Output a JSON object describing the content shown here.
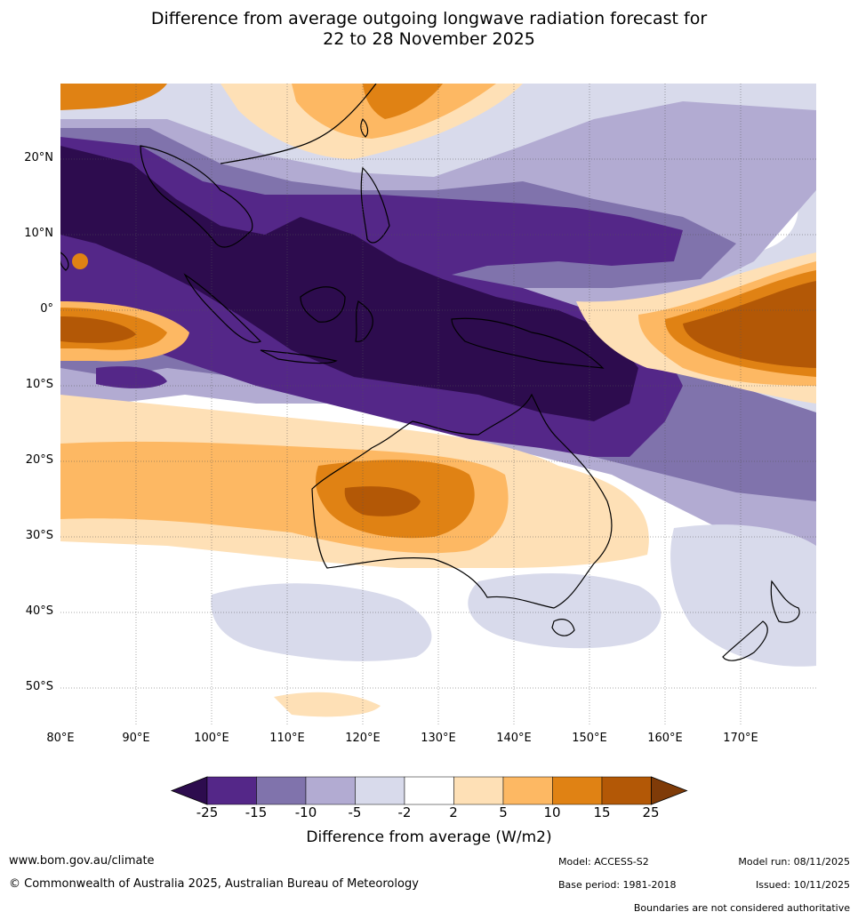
{
  "title": {
    "line1": "Difference from average outgoing longwave radiation forecast for",
    "line2": "22 to 28 November 2025"
  },
  "map": {
    "region": "Australia, Maritime Continent and Indian/Pacific Oceans",
    "lon_range": [
      80,
      180
    ],
    "lat_range": [
      -55,
      30
    ],
    "lat_labels": [
      "20°N",
      "10°N",
      "0°",
      "10°S",
      "20°S",
      "30°S",
      "40°S",
      "50°S"
    ],
    "lon_labels": [
      "80°E",
      "90°E",
      "100°E",
      "110°E",
      "120°E",
      "130°E",
      "140°E",
      "150°E",
      "160°E",
      "170°E"
    ]
  },
  "colorbar": {
    "tick_labels": [
      "-25",
      "-15",
      "-10",
      "-5",
      "-2",
      "2",
      "5",
      "10",
      "15",
      "25"
    ],
    "colors": [
      "#2d0c4e",
      "#542788",
      "#8073ac",
      "#b2abd2",
      "#d8daeb",
      "#ffffff",
      "#fee0b6",
      "#fdb863",
      "#e08214",
      "#b35806",
      "#7f3b08"
    ],
    "title": "Difference from average (W/m2)"
  },
  "footer": {
    "website": "www.bom.gov.au/climate",
    "copyright": "© Commonwealth of Australia 2025, Australian Bureau of Meteorology",
    "model": "Model: ACCESS-S2",
    "base_period": "Base period: 1981-2018",
    "model_run": "Model run: 08/11/2025",
    "issued": "Issued: 10/11/2025",
    "disclaimer": "Boundaries are not considered authoritative"
  }
}
